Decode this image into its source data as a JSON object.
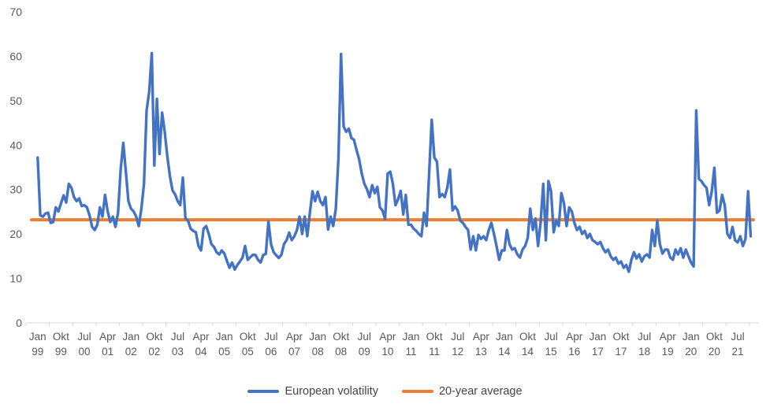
{
  "colors": {
    "series_blue": "#4472C4",
    "series_orange": "#ED7D31",
    "axis_line": "#D9D9D9",
    "axis_text": "#595959",
    "legend_text": "#444444",
    "background": "#FFFFFF"
  },
  "legend": {
    "items": [
      {
        "label": "European volatility",
        "color": "#4472C4"
      },
      {
        "label": "20-year average",
        "color": "#ED7D31"
      }
    ]
  },
  "chart_data": {
    "type": "line",
    "title": "",
    "xlabel": "",
    "ylabel": "",
    "frequency": "monthly",
    "x_start": "Jan 1999",
    "x_end": "Dez 2021",
    "ylim": [
      0,
      70
    ],
    "y_ticks": [
      0,
      10,
      20,
      30,
      40,
      50,
      60,
      70
    ],
    "grid": false,
    "legend_position": "bottom",
    "x_labels": [
      "Jan 99",
      "Okt 99",
      "Jul 00",
      "Apr 01",
      "Jan 02",
      "Okt 02",
      "Jul 03",
      "Apr 04",
      "Jan 05",
      "Okt 05",
      "Jul 06",
      "Apr 07",
      "Jan 08",
      "Okt 08",
      "Jul 09",
      "Apr 10",
      "Jan 11",
      "Okt 11",
      "Jul 12",
      "Apr 13",
      "Jan 14",
      "Okt 14",
      "Jul 15",
      "Apr 16",
      "Jan 17",
      "Okt 17",
      "Jul 18",
      "Apr 19",
      "Jan 20",
      "Okt 20",
      "Jul 21"
    ],
    "x_label_interval_months": 9,
    "series": [
      {
        "name": "European volatility",
        "color": "#4472C4",
        "values": [
          37.2,
          24.2,
          23.9,
          24.6,
          24.8,
          22.5,
          22.7,
          26.0,
          25.1,
          26.9,
          28.7,
          27.1,
          31.3,
          30.4,
          28.3,
          27.4,
          28.0,
          26.3,
          26.5,
          26.0,
          24.2,
          21.6,
          20.9,
          22.1,
          26.0,
          23.9,
          28.8,
          25.1,
          22.7,
          23.9,
          21.6,
          24.8,
          34.5,
          40.5,
          34.0,
          27.4,
          25.7,
          25.1,
          23.9,
          21.8,
          25.7,
          31.3,
          47.8,
          52.0,
          60.7,
          35.4,
          50.4,
          38.0,
          47.3,
          43.0,
          37.5,
          33.0,
          29.8,
          28.9,
          27.4,
          26.5,
          32.7,
          23.5,
          23.0,
          21.2,
          20.7,
          20.4,
          17.3,
          16.3,
          21.2,
          21.8,
          20.0,
          17.7,
          17.1,
          15.9,
          15.4,
          16.3,
          15.6,
          13.9,
          12.4,
          13.6,
          12.0,
          13.0,
          13.8,
          14.7,
          17.3,
          14.2,
          14.8,
          15.3,
          15.3,
          14.2,
          13.6,
          15.3,
          15.5,
          22.8,
          17.7,
          15.9,
          15.2,
          14.6,
          15.3,
          17.7,
          18.6,
          20.3,
          18.6,
          19.5,
          20.9,
          23.9,
          20.0,
          23.9,
          19.5,
          24.8,
          29.6,
          27.4,
          29.5,
          27.4,
          26.5,
          28.3,
          21.0,
          23.9,
          21.8,
          25.7,
          37.0,
          60.5,
          44.2,
          43.0,
          43.7,
          41.6,
          41.2,
          38.9,
          36.8,
          33.6,
          31.3,
          30.1,
          28.3,
          31.0,
          29.2,
          30.6,
          26.0,
          25.3,
          23.4,
          33.6,
          34.0,
          31.3,
          26.5,
          27.8,
          29.7,
          24.4,
          28.8,
          22.1,
          22.1,
          21.2,
          20.7,
          20.0,
          19.5,
          24.8,
          21.8,
          33.6,
          45.7,
          37.2,
          36.3,
          28.3,
          29.0,
          28.3,
          30.5,
          34.5,
          25.3,
          26.2,
          25.3,
          23.0,
          22.5,
          21.6,
          20.9,
          16.5,
          19.5,
          16.3,
          19.8,
          18.9,
          19.5,
          18.6,
          20.9,
          22.5,
          20.0,
          17.2,
          14.2,
          16.3,
          16.3,
          20.9,
          17.7,
          16.5,
          16.8,
          15.4,
          14.7,
          16.5,
          17.3,
          19.1,
          25.7,
          20.9,
          23.5,
          17.3,
          22.7,
          31.3,
          18.6,
          31.9,
          29.6,
          20.4,
          23.0,
          21.8,
          29.2,
          26.9,
          21.8,
          26.0,
          25.1,
          22.5,
          20.9,
          21.6,
          20.0,
          20.7,
          19.1,
          20.0,
          18.6,
          18.2,
          17.7,
          18.2,
          16.8,
          15.9,
          16.5,
          15.0,
          14.2,
          14.7,
          13.3,
          13.8,
          12.4,
          13.0,
          11.5,
          14.2,
          15.9,
          14.5,
          15.4,
          13.8,
          15.0,
          15.4,
          14.7,
          20.9,
          17.3,
          23.0,
          17.7,
          15.6,
          16.5,
          16.5,
          14.7,
          14.2,
          16.5,
          15.4,
          16.8,
          14.7,
          16.5,
          15.0,
          13.6,
          12.7,
          47.8,
          32.4,
          31.9,
          31.0,
          30.4,
          26.5,
          29.6,
          34.9,
          24.8,
          25.3,
          28.8,
          26.5,
          20.0,
          19.1,
          21.6,
          18.6,
          18.1,
          19.5,
          17.3,
          18.9,
          29.6,
          19.5
        ]
      },
      {
        "name": "20-year average",
        "color": "#ED7D31",
        "constant_value": 23.2
      }
    ]
  }
}
